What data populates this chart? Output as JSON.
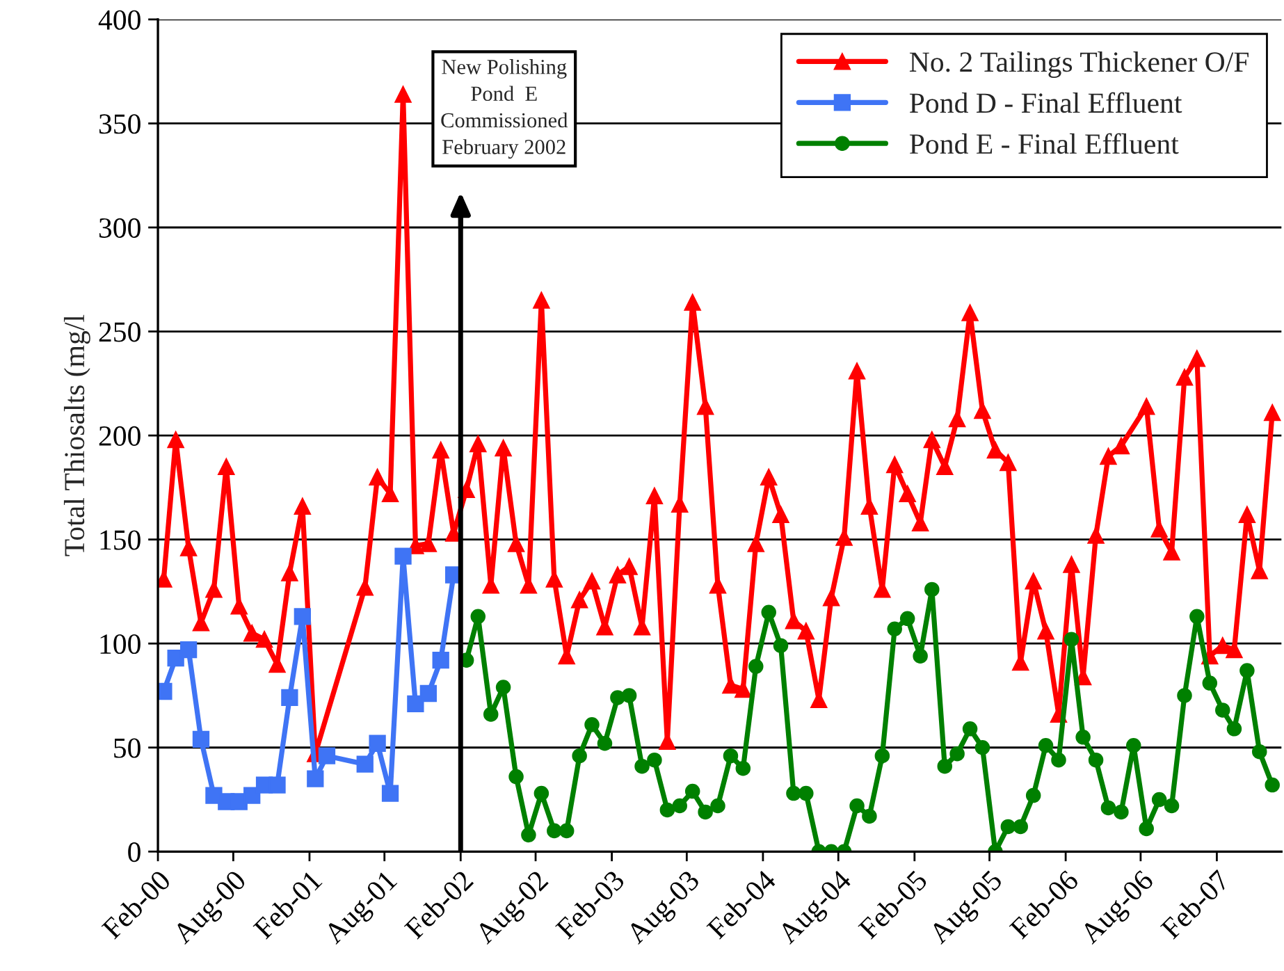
{
  "chart_data": {
    "type": "line",
    "ylabel": "Total Thiosalts (mg/l",
    "xlim": [
      "2000-02-01",
      "2007-07-07"
    ],
    "xticks": [
      {
        "value": "2000-02-01",
        "label": "Feb-00"
      },
      {
        "value": "2000-08-01",
        "label": "Aug-00"
      },
      {
        "value": "2001-02-01",
        "label": "Feb-01"
      },
      {
        "value": "2001-08-01",
        "label": "Aug-01"
      },
      {
        "value": "2002-02-01",
        "label": "Feb-02"
      },
      {
        "value": "2002-08-01",
        "label": "Aug-02"
      },
      {
        "value": "2003-02-01",
        "label": "Feb-03"
      },
      {
        "value": "2003-08-01",
        "label": "Aug-03"
      },
      {
        "value": "2004-02-01",
        "label": "Feb-04"
      },
      {
        "value": "2004-08-01",
        "label": "Aug-04"
      },
      {
        "value": "2005-02-01",
        "label": "Feb-05"
      },
      {
        "value": "2005-08-01",
        "label": "Aug-05"
      },
      {
        "value": "2006-02-01",
        "label": "Feb-06"
      },
      {
        "value": "2006-08-01",
        "label": "Aug-06"
      },
      {
        "value": "2007-02-01",
        "label": "Feb-07"
      }
    ],
    "ylim": [
      0,
      400
    ],
    "yticks": [
      0,
      50,
      100,
      150,
      200,
      250,
      300,
      350,
      400
    ],
    "grid": "y",
    "legend": "top right",
    "line_style": "solid",
    "ref_lines": [
      {
        "axis": "x",
        "value": "2002-02-01",
        "label": "New Polishing\nPond  E\nCommissioned\nFebruary 2002",
        "color": "#000000"
      }
    ],
    "series": [
      {
        "name": "No. 2 Tailings Thickener O/F",
        "color": "#ff0000",
        "marker": "triangle",
        "x": [
          "2000-02-15",
          "2000-03-15",
          "2000-04-15",
          "2000-05-15",
          "2000-06-15",
          "2000-07-15",
          "2000-08-15",
          "2000-09-15",
          "2000-10-15",
          "2000-11-15",
          "2000-12-15",
          "2001-01-15",
          "2001-02-15",
          "2001-06-15",
          "2001-07-15",
          "2001-08-15",
          "2001-09-15",
          "2001-10-15",
          "2001-11-15",
          "2001-12-15",
          "2002-01-15",
          "2002-02-15",
          "2002-03-15",
          "2002-04-15",
          "2002-05-15",
          "2002-06-15",
          "2002-07-15",
          "2002-08-15",
          "2002-09-15",
          "2002-10-15",
          "2002-11-15",
          "2002-12-15",
          "2003-01-15",
          "2003-02-15",
          "2003-03-15",
          "2003-04-15",
          "2003-05-15",
          "2003-06-15",
          "2003-07-15",
          "2003-08-15",
          "2003-09-15",
          "2003-10-15",
          "2003-11-15",
          "2003-12-15",
          "2004-01-15",
          "2004-02-15",
          "2004-03-15",
          "2004-04-15",
          "2004-05-15",
          "2004-06-15",
          "2004-07-15",
          "2004-08-15",
          "2004-09-15",
          "2004-10-15",
          "2004-11-15",
          "2004-12-15",
          "2005-01-15",
          "2005-02-15",
          "2005-03-15",
          "2005-04-15",
          "2005-05-15",
          "2005-06-15",
          "2005-07-15",
          "2005-08-15",
          "2005-09-15",
          "2005-10-15",
          "2005-11-15",
          "2005-12-15",
          "2006-01-15",
          "2006-02-15",
          "2006-03-15",
          "2006-04-15",
          "2006-05-15",
          "2006-06-15",
          "2006-08-15",
          "2006-09-15",
          "2006-10-15",
          "2006-11-15",
          "2006-12-15",
          "2007-01-15",
          "2007-02-15",
          "2007-03-15",
          "2007-04-15",
          "2007-05-15",
          "2007-06-15"
        ],
        "values": [
          131,
          198,
          146,
          110,
          126,
          185,
          118,
          105,
          102,
          90,
          134,
          166,
          47,
          127,
          180,
          172,
          364,
          147,
          148,
          193,
          153,
          174,
          196,
          128,
          194,
          148,
          128,
          265,
          131,
          94,
          121,
          130,
          108,
          133,
          137,
          108,
          171,
          53,
          167,
          264,
          214,
          128,
          80,
          78,
          148,
          180,
          162,
          111,
          106,
          73,
          122,
          151,
          231,
          166,
          126,
          186,
          172,
          158,
          198,
          185,
          208,
          259,
          212,
          193,
          187,
          91,
          130,
          106,
          66,
          138,
          84,
          152,
          190,
          195,
          214,
          155,
          144,
          228,
          237,
          94,
          99,
          97,
          162,
          135,
          211
        ]
      },
      {
        "name": "Pond D - Final Effluent",
        "color": "#3f74f5",
        "marker": "square",
        "x": [
          "2000-02-15",
          "2000-03-15",
          "2000-04-15",
          "2000-05-15",
          "2000-06-15",
          "2000-07-15",
          "2000-08-15",
          "2000-09-15",
          "2000-10-15",
          "2000-11-15",
          "2000-12-15",
          "2001-01-15",
          "2001-02-15",
          "2001-03-15",
          "2001-06-15",
          "2001-07-15",
          "2001-08-15",
          "2001-09-15",
          "2001-10-15",
          "2001-11-15",
          "2001-12-15",
          "2002-01-15"
        ],
        "values": [
          77,
          93,
          97,
          54,
          27,
          24,
          24,
          27,
          32,
          32,
          74,
          113,
          35,
          46,
          42,
          52,
          28,
          142,
          71,
          76,
          92,
          133
        ]
      },
      {
        "name": "Pond E - Final Effluent",
        "color": "#008000",
        "marker": "circle",
        "x": [
          "2002-02-15",
          "2002-03-15",
          "2002-04-15",
          "2002-05-15",
          "2002-06-15",
          "2002-07-15",
          "2002-08-15",
          "2002-09-15",
          "2002-10-15",
          "2002-11-15",
          "2002-12-15",
          "2003-01-15",
          "2003-02-15",
          "2003-03-15",
          "2003-04-15",
          "2003-05-15",
          "2003-06-15",
          "2003-07-15",
          "2003-08-15",
          "2003-09-15",
          "2003-10-15",
          "2003-11-15",
          "2003-12-15",
          "2004-01-15",
          "2004-02-15",
          "2004-03-15",
          "2004-04-15",
          "2004-05-15",
          "2004-06-15",
          "2004-07-15",
          "2004-08-15",
          "2004-09-15",
          "2004-10-15",
          "2004-11-15",
          "2004-12-15",
          "2005-01-15",
          "2005-02-15",
          "2005-03-15",
          "2005-04-15",
          "2005-05-15",
          "2005-06-15",
          "2005-07-15",
          "2005-08-15",
          "2005-09-15",
          "2005-10-15",
          "2005-11-15",
          "2005-12-15",
          "2006-01-15",
          "2006-02-15",
          "2006-03-15",
          "2006-04-15",
          "2006-05-15",
          "2006-06-15",
          "2006-07-15",
          "2006-08-15",
          "2006-09-15",
          "2006-10-15",
          "2006-11-15",
          "2006-12-15",
          "2007-01-15",
          "2007-02-15",
          "2007-03-15",
          "2007-04-15",
          "2007-05-15",
          "2007-06-15"
        ],
        "values": [
          92,
          113,
          66,
          79,
          36,
          8,
          28,
          10,
          10,
          46,
          61,
          52,
          74,
          75,
          41,
          44,
          20,
          22,
          29,
          19,
          22,
          46,
          40,
          89,
          115,
          99,
          28,
          28,
          0,
          0,
          0,
          22,
          17,
          46,
          107,
          112,
          94,
          126,
          41,
          47,
          59,
          50,
          0,
          12,
          12,
          27,
          51,
          44,
          102,
          55,
          44,
          21,
          19,
          51,
          11,
          25,
          22,
          75,
          113,
          81,
          68,
          59,
          87,
          48,
          32
        ]
      }
    ]
  }
}
